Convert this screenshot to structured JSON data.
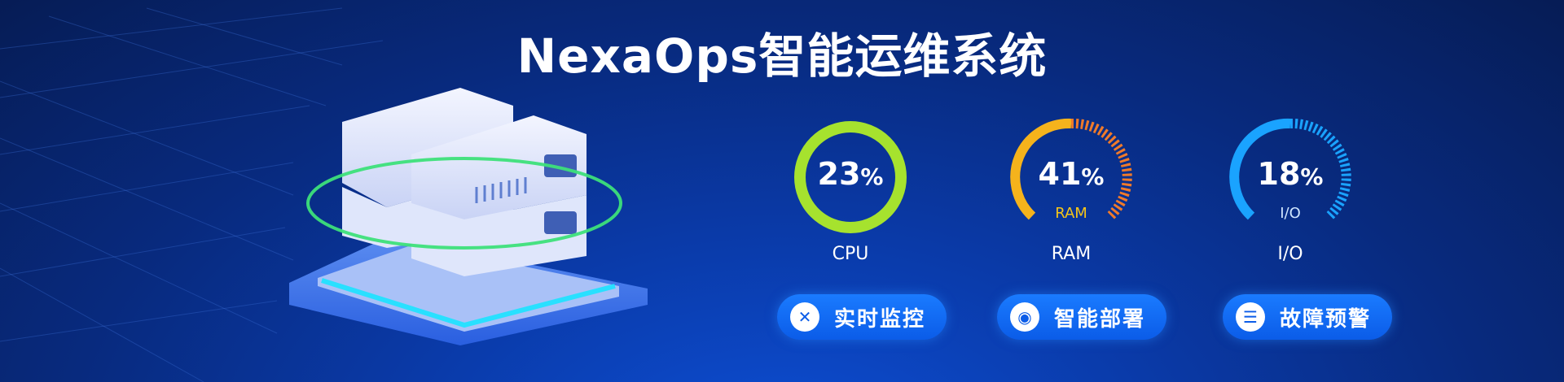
{
  "title": "NexaOps智能运维系统",
  "gauges": [
    {
      "id": "cpu",
      "value": "23",
      "unit": "%",
      "inner_label": "",
      "label": "CPU",
      "percent": 23,
      "color": "#a6e22e"
    },
    {
      "id": "ram",
      "value": "41",
      "unit": "%",
      "inner_label": "RAM",
      "label": "RAM",
      "percent": 41,
      "color": "#f5b31c"
    },
    {
      "id": "io",
      "value": "18",
      "unit": "%",
      "inner_label": "I/O",
      "label": "I/O",
      "percent": 18,
      "color": "#1aa3ff"
    }
  ],
  "buttons": [
    {
      "label": "实时监控",
      "icon": "close-x-icon"
    },
    {
      "label": "智能部署",
      "icon": "lightbulb-icon"
    },
    {
      "label": "故障预警",
      "icon": "menu-lines-icon"
    }
  ],
  "colors": {
    "accent": "#0b5ce8",
    "ring": "#3de07a",
    "glow": "#19e3ff"
  }
}
